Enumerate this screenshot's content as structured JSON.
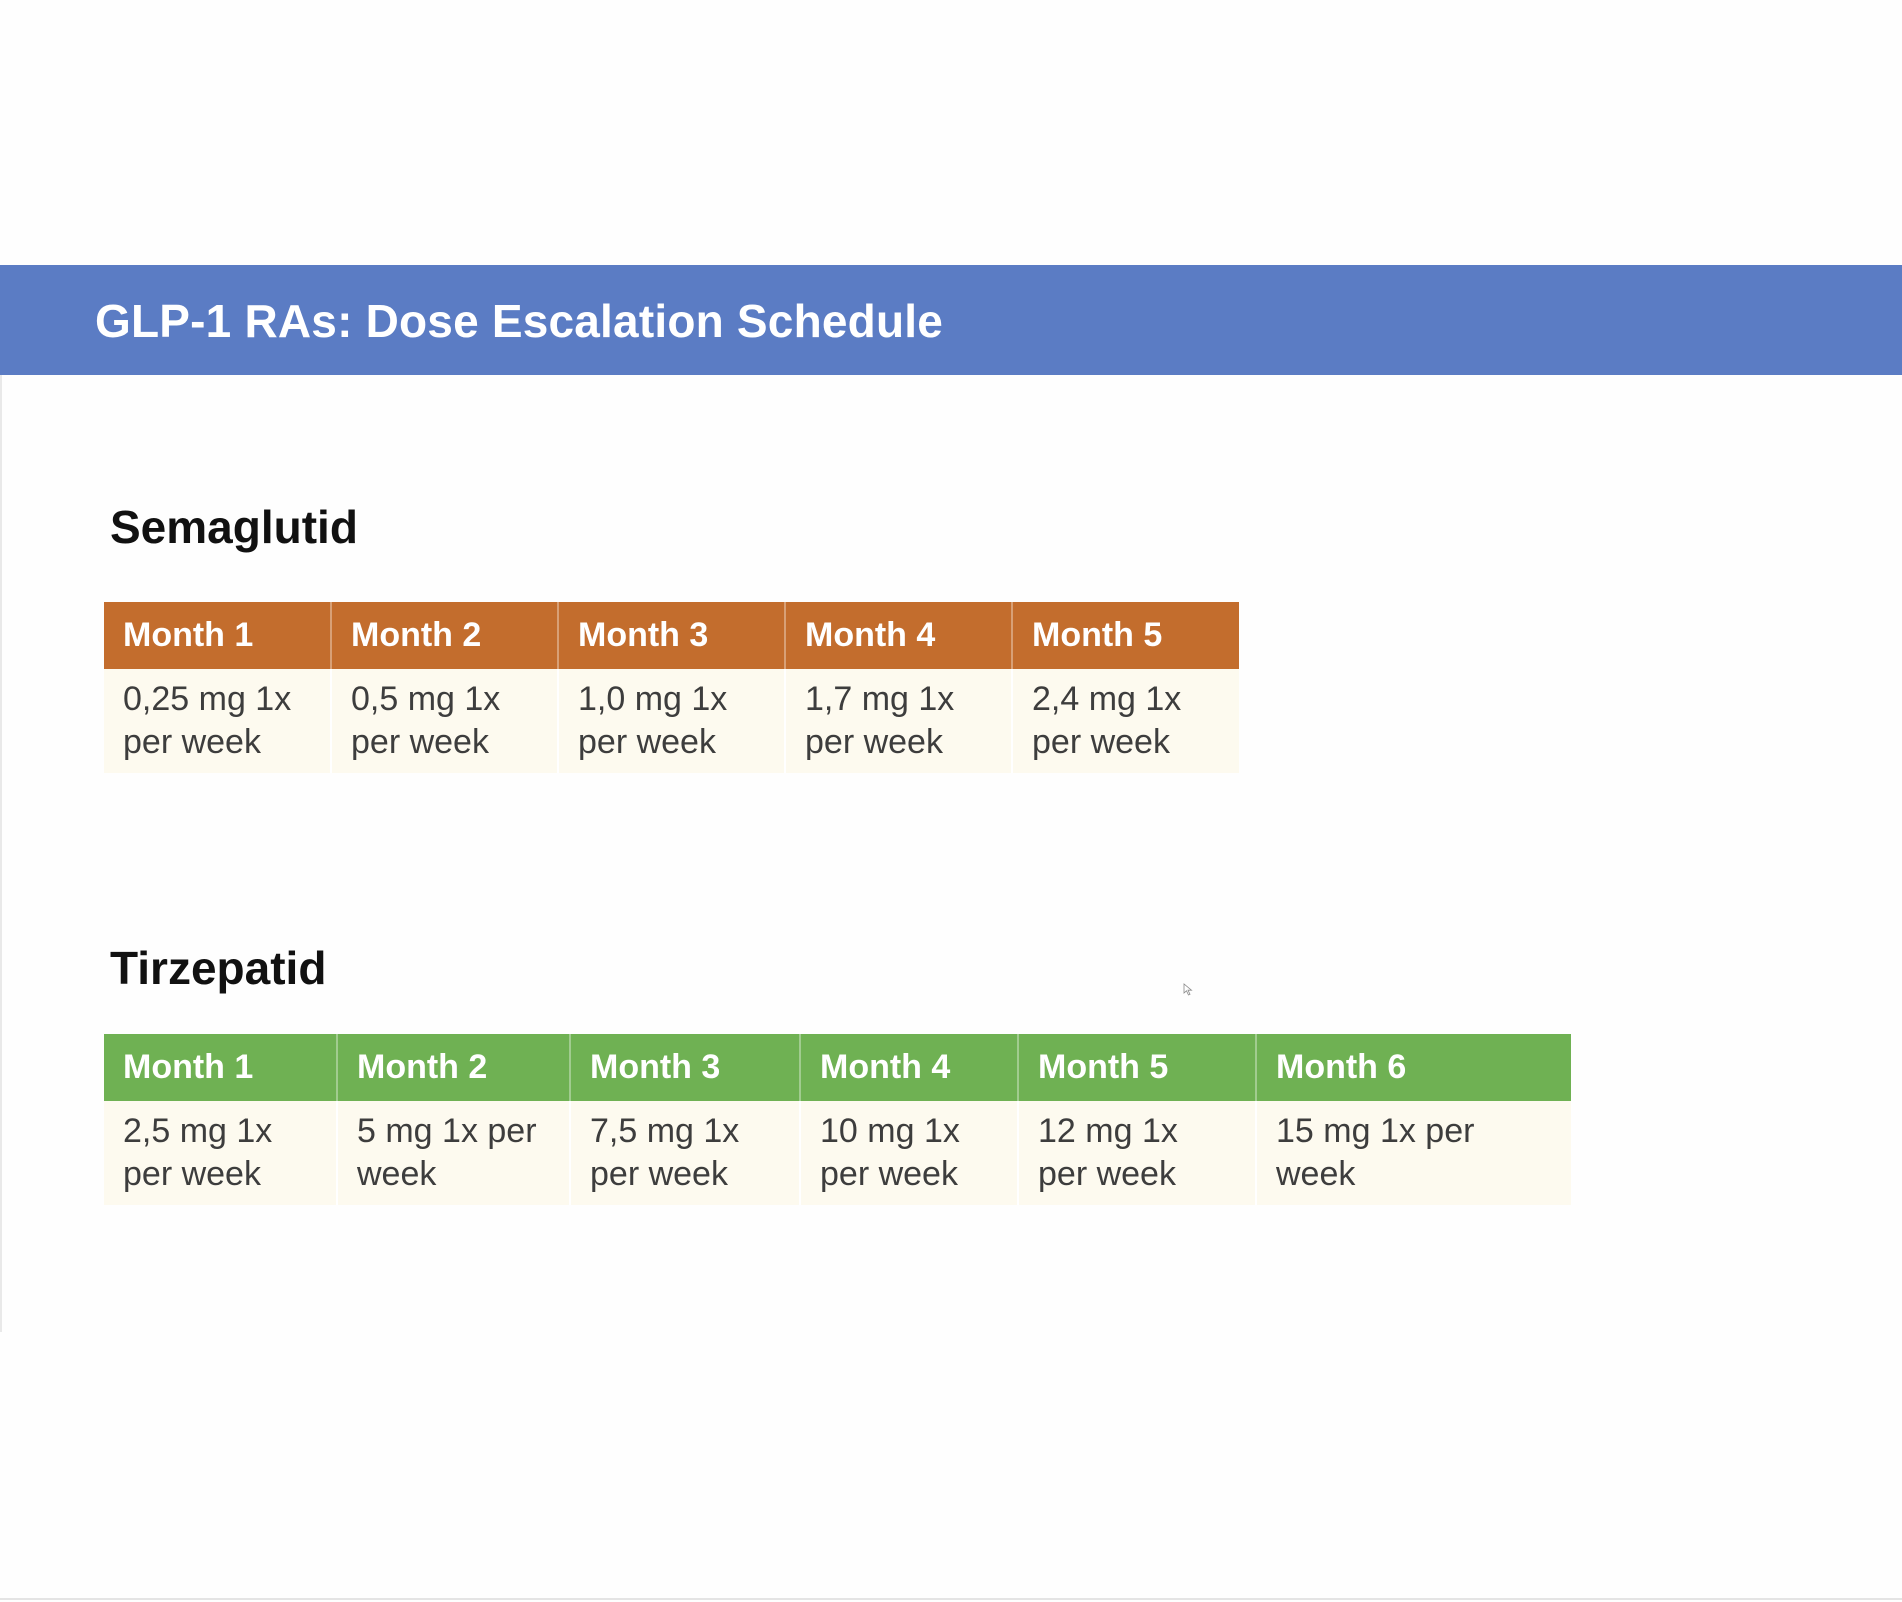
{
  "slide": {
    "title": "GLP-1 RAs: Dose Escalation Schedule"
  },
  "colors": {
    "title_bar": "#5b7cc4",
    "semaglutid_header": "#c36d2d",
    "tirzepatid_header": "#6fb153",
    "cell_background": "#fdfaef"
  },
  "semaglutid": {
    "heading": "Semaglutid",
    "headers": [
      "Month 1",
      "Month 2",
      "Month 3",
      "Month 4",
      "Month 5"
    ],
    "doses": [
      [
        "0,25 mg 1x",
        "per week"
      ],
      [
        "0,5 mg 1x",
        "per week"
      ],
      [
        "1,0 mg 1x",
        "per week"
      ],
      [
        "1,7 mg 1x",
        "per week"
      ],
      [
        "2,4 mg 1x",
        "per week"
      ]
    ]
  },
  "tirzepatid": {
    "heading": "Tirzepatid",
    "headers": [
      "Month 1",
      "Month 2",
      "Month 3",
      "Month 4",
      "Month 5",
      "Month 6"
    ],
    "doses": [
      [
        "2,5 mg 1x",
        "per week"
      ],
      [
        "5 mg 1x per",
        "week"
      ],
      [
        "7,5 mg 1x",
        "per week"
      ],
      [
        "10 mg 1x",
        "per week"
      ],
      [
        "12 mg 1x",
        "per week"
      ],
      [
        "15 mg 1x per",
        "week"
      ]
    ]
  },
  "cursor_icon": "mouse-pointer-icon"
}
